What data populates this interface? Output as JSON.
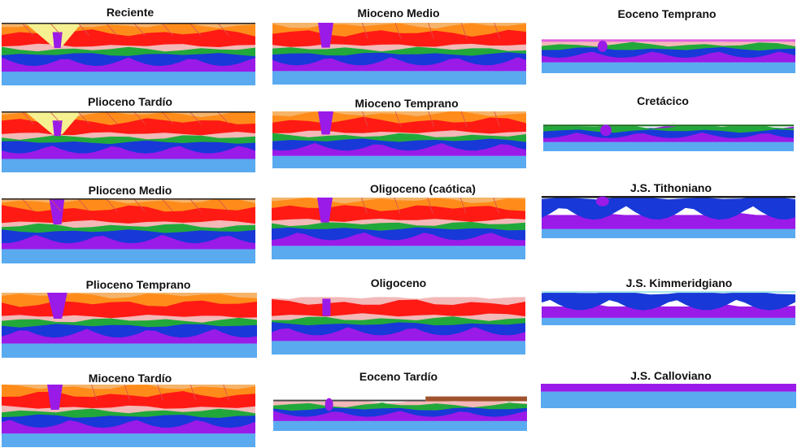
{
  "panels": [
    {
      "title": "Reciente",
      "overburden": "full",
      "diapir": "funnel"
    },
    {
      "title": "Plioceno Tardío",
      "overburden": "full",
      "diapir": "funnel"
    },
    {
      "title": "Plioceno Medio",
      "overburden": "full",
      "diapir": "stem"
    },
    {
      "title": "Plioceno Temprano",
      "overburden": "olive",
      "diapir": "stem"
    },
    {
      "title": "Mioceno Tardío",
      "overburden": "orange",
      "diapir": "stem"
    },
    {
      "title": "Mioceno Medio",
      "overburden": "orange",
      "diapir": "stem"
    },
    {
      "title": "Mioceno Temprano",
      "overburden": "orange",
      "diapir": "stem"
    },
    {
      "title": "Oligoceno (caótica)",
      "overburden": "orange",
      "diapir": "stem"
    },
    {
      "title": "Oligoceno",
      "overburden": "pink",
      "diapir": "stem"
    },
    {
      "title": "Eoceno Tardío",
      "overburden": "brown",
      "diapir": "small"
    },
    {
      "title": "Eoceno Temprano",
      "overburden": "thin",
      "diapir": "small"
    },
    {
      "title": "Cretácico",
      "overburden": "green",
      "diapir": "small"
    },
    {
      "title": "J.S. Tithoniano",
      "overburden": "blue",
      "diapir": "small"
    },
    {
      "title": "J.S. Kimmeridgiano",
      "overburden": "blue",
      "diapir": "none"
    },
    {
      "title": "J.S. Calloviano",
      "overburden": "salt",
      "diapir": "none"
    }
  ],
  "colors": {
    "basement": "#5aaaf0",
    "salt": "#9a1ae8",
    "jurassic": "#1838d8",
    "cretaceous": "#22a83a",
    "eocene": "#f3b8b8",
    "oligocene": "#ff1a14",
    "miocene": "#ff8c1a",
    "miocene_light": "#f5b46a",
    "pliocene_olive": "#a8a830",
    "pliocene_light": "#e8e050",
    "pliocene_gray": "#a8a8a0",
    "recent": "#f5f090",
    "water": "#a8e8e8",
    "fault": "#d85050"
  }
}
